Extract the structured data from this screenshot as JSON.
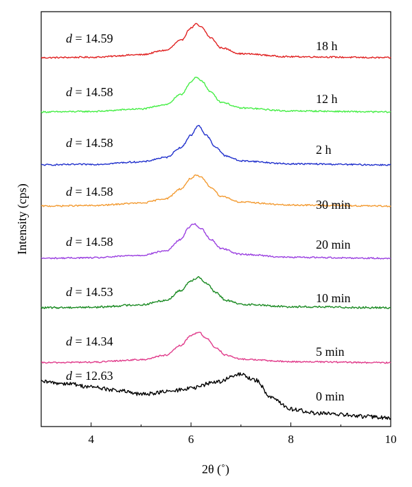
{
  "chart_data": {
    "type": "line",
    "xlabel": "2θ (˚)",
    "ylabel": "Intensity (cps)",
    "xlim": [
      3,
      10
    ],
    "xticks": [
      4,
      6,
      8,
      10
    ],
    "grid": false,
    "series": [
      {
        "name": "18 h",
        "d_label": "d = 14.59",
        "color": "#e02020",
        "peak_x": 6.1,
        "offset": 7,
        "peak_height": 0.68,
        "noise": 0.03,
        "x": [
          3.0,
          4.0,
          5.0,
          5.5,
          5.8,
          6.0,
          6.1,
          6.2,
          6.4,
          6.6,
          7.0,
          8.0,
          10.0
        ],
        "y": [
          0.0,
          0.01,
          0.06,
          0.15,
          0.35,
          0.6,
          0.68,
          0.62,
          0.4,
          0.2,
          0.08,
          0.02,
          0.0
        ]
      },
      {
        "name": "12 h",
        "d_label": "d = 14.58",
        "color": "#44ee44",
        "peak_x": 6.1,
        "offset": 6,
        "peak_height": 0.7,
        "noise": 0.03,
        "x": [
          3.0,
          4.0,
          5.0,
          5.5,
          5.8,
          6.0,
          6.1,
          6.2,
          6.4,
          6.6,
          7.0,
          8.0,
          10.0
        ],
        "y": [
          0.0,
          0.01,
          0.06,
          0.15,
          0.35,
          0.6,
          0.7,
          0.64,
          0.4,
          0.2,
          0.08,
          0.02,
          0.0
        ]
      },
      {
        "name": "2 h",
        "d_label": "d = 14.58",
        "color": "#1f2fcc",
        "peak_x": 6.15,
        "offset": 5,
        "peak_height": 0.8,
        "noise": 0.03,
        "x": [
          3.0,
          4.0,
          5.0,
          5.5,
          5.8,
          6.0,
          6.15,
          6.3,
          6.5,
          6.7,
          7.0,
          8.0,
          10.0
        ],
        "y": [
          0.0,
          0.01,
          0.06,
          0.15,
          0.35,
          0.6,
          0.8,
          0.6,
          0.35,
          0.18,
          0.08,
          0.02,
          0.0
        ]
      },
      {
        "name": "30 min",
        "d_label": "d = 14.58",
        "color": "#f39a30",
        "peak_x": 6.1,
        "offset": 4,
        "peak_height": 0.62,
        "noise": 0.03,
        "x": [
          3.0,
          4.0,
          5.0,
          5.5,
          5.8,
          6.0,
          6.1,
          6.2,
          6.4,
          6.6,
          7.0,
          8.0,
          10.0
        ],
        "y": [
          0.0,
          0.01,
          0.06,
          0.15,
          0.35,
          0.56,
          0.62,
          0.58,
          0.38,
          0.2,
          0.08,
          0.02,
          0.0
        ]
      },
      {
        "name": "20 min",
        "d_label": "d = 14.58",
        "color": "#9a3fe0",
        "peak_x": 6.05,
        "offset": 3,
        "peak_height": 0.7,
        "noise": 0.03,
        "x": [
          3.0,
          4.0,
          5.0,
          5.5,
          5.8,
          5.95,
          6.05,
          6.2,
          6.4,
          6.6,
          7.0,
          8.0,
          10.0
        ],
        "y": [
          0.0,
          0.01,
          0.06,
          0.15,
          0.38,
          0.62,
          0.7,
          0.6,
          0.38,
          0.2,
          0.08,
          0.02,
          0.0
        ]
      },
      {
        "name": "10 min",
        "d_label": "d = 14.53",
        "color": "#1a8a22",
        "peak_x": 6.15,
        "offset": 2,
        "peak_height": 0.62,
        "noise": 0.04,
        "x": [
          3.0,
          4.0,
          5.0,
          5.5,
          5.8,
          6.0,
          6.15,
          6.3,
          6.5,
          6.7,
          7.0,
          8.0,
          10.0
        ],
        "y": [
          0.0,
          0.01,
          0.06,
          0.15,
          0.35,
          0.55,
          0.62,
          0.5,
          0.3,
          0.15,
          0.07,
          0.02,
          0.0
        ]
      },
      {
        "name": "5 min",
        "d_label": "d = 14.34",
        "color": "#e03a8a",
        "peak_x": 6.15,
        "offset": 1,
        "peak_height": 0.62,
        "noise": 0.03,
        "x": [
          3.0,
          4.0,
          5.0,
          5.5,
          5.8,
          6.0,
          6.15,
          6.3,
          6.5,
          6.7,
          7.0,
          8.0,
          10.0
        ],
        "y": [
          0.0,
          0.01,
          0.06,
          0.15,
          0.35,
          0.55,
          0.62,
          0.5,
          0.3,
          0.15,
          0.07,
          0.02,
          0.0
        ]
      },
      {
        "name": "0 min",
        "d_label": "d = 12.63",
        "color": "#000000",
        "peak_x": 7.0,
        "offset": 0,
        "peak_height": 0.9,
        "noise": 0.08,
        "x": [
          3.0,
          3.5,
          4.0,
          4.5,
          5.0,
          5.5,
          6.0,
          6.5,
          7.0,
          7.3,
          7.6,
          8.0,
          8.5,
          9.0,
          9.5,
          10.0
        ],
        "y": [
          0.75,
          0.72,
          0.65,
          0.58,
          0.5,
          0.55,
          0.62,
          0.75,
          0.9,
          0.78,
          0.45,
          0.2,
          0.12,
          0.09,
          0.05,
          0.02
        ]
      }
    ]
  }
}
